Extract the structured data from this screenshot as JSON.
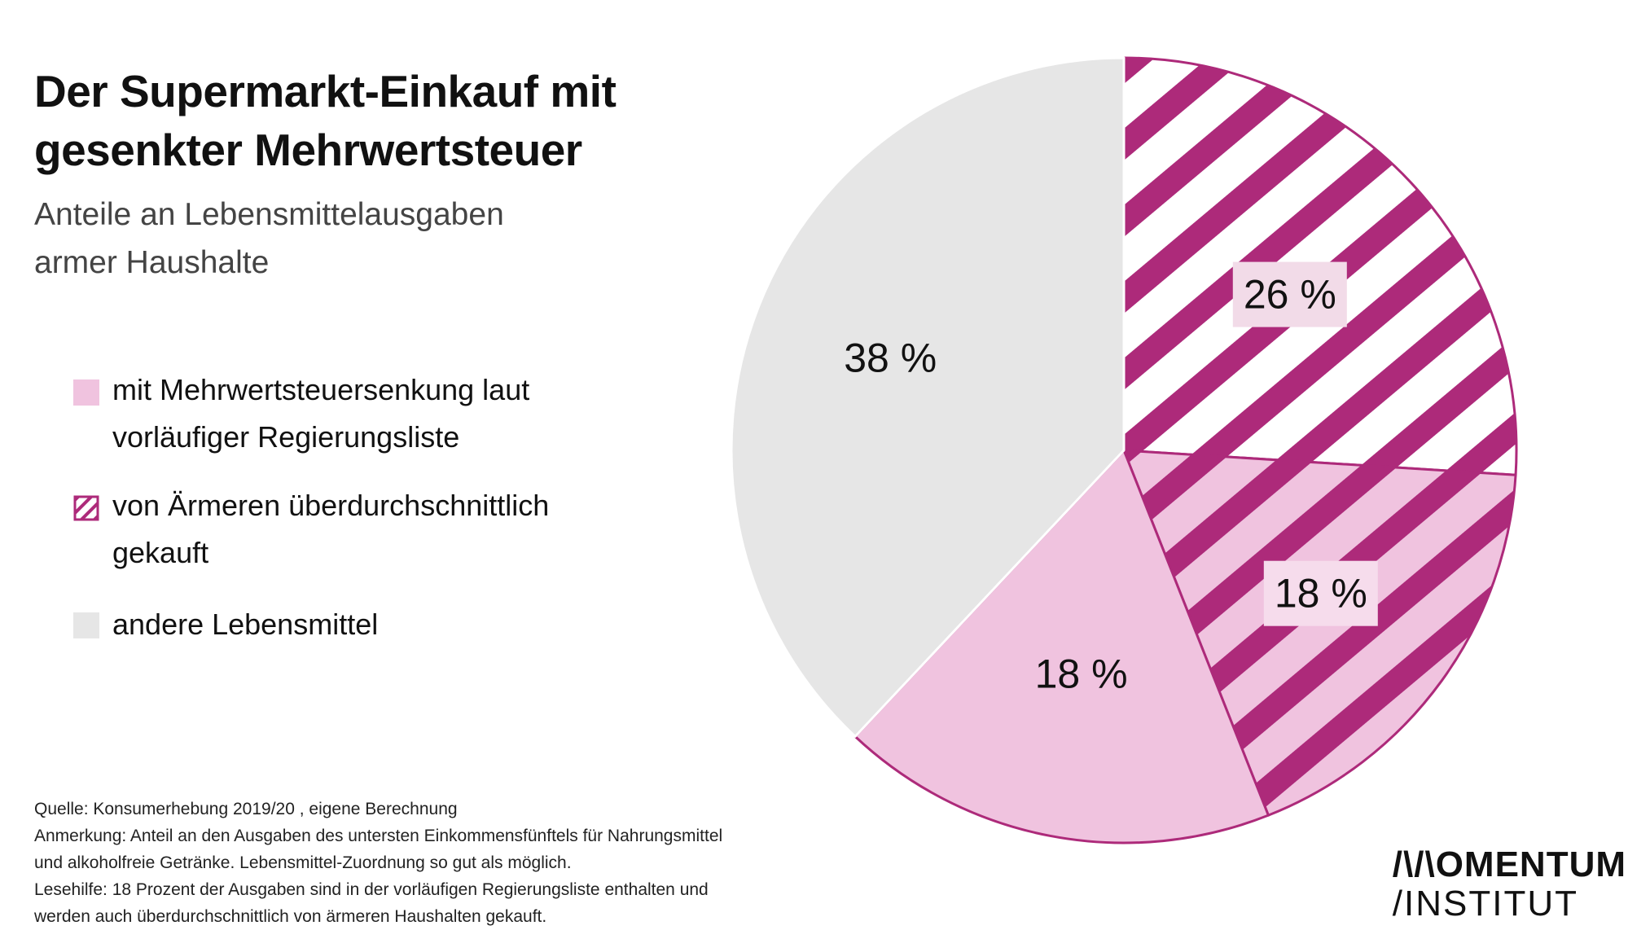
{
  "title_lines": [
    "Der Supermarkt-Einkauf mit",
    "gesenkter Mehrwertsteuer"
  ],
  "subtitle_lines": [
    "Anteile an Lebensmittelausgaben",
    "armer Haushalte"
  ],
  "legend": [
    {
      "lines": [
        "mit Mehrwertsteuersenkung laut",
        "vorläufiger Regierungsliste"
      ],
      "swatch": "light-pink"
    },
    {
      "lines": [
        "von Ärmeren überdurchschnittlich",
        "gekauft"
      ],
      "swatch": "magenta-hatched"
    },
    {
      "lines": [
        "andere Lebensmittel"
      ],
      "swatch": "grey"
    }
  ],
  "notes": [
    "Quelle: Konsumerhebung 2019/20 , eigene Berechnung",
    "Anmerkung: Anteil an den Ausgaben des untersten Einkommensfünftels für Nahrungsmittel",
    "und alkoholfreie Getränke. Lebensmittel-Zuordnung so gut als möglich.",
    "Lesehilfe: 18 Prozent der Ausgaben sind in der vorläufigen Regierungsliste enthalten und",
    "werden auch überdurchschnittlich von ärmeren Haushalten gekauft."
  ],
  "logo": {
    "line1": "/\\/\\OMENTUM",
    "line2": "/INSTITUT"
  },
  "colors": {
    "magenta": "#ad2a7a",
    "light_pink": "#f0c3df",
    "grey": "#e6e6e6",
    "white": "#ffffff"
  },
  "chart_data": {
    "type": "pie",
    "start": "12 o'clock",
    "direction": "clockwise",
    "slices": [
      {
        "value": 26,
        "label": "26 %",
        "style": "magenta-white-stripes"
      },
      {
        "value": 18,
        "label": "18 %",
        "style": "magenta-pink-stripes"
      },
      {
        "value": 18,
        "label": "18 %",
        "style": "light-pink"
      },
      {
        "value": 38,
        "label": "38 %",
        "style": "grey"
      }
    ]
  }
}
